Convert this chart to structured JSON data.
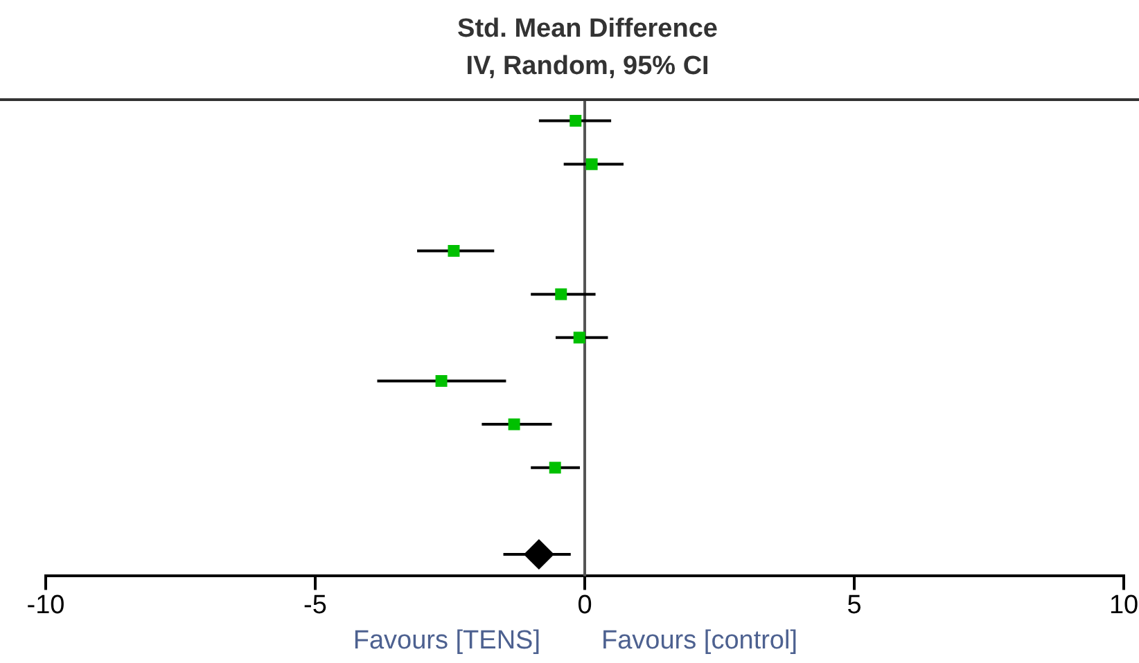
{
  "chart_data": {
    "type": "scatter",
    "orientation": "horizontal",
    "title": "Std. Mean Difference",
    "subtitle": "IV, Random, 95% CI",
    "categories": [
      null,
      null,
      null,
      null,
      null,
      null,
      null,
      null,
      null,
      null,
      null
    ],
    "series": [
      {
        "color": "#00c000",
        "marker": "square",
        "values": [
          -0.17,
          0.13,
          null,
          -2.43,
          -0.44,
          -0.1,
          -2.66,
          -1.31,
          -0.55,
          null,
          null
        ],
        "errors": [
          [
            -0.85,
            0.49
          ],
          [
            -0.39,
            0.72
          ],
          null,
          [
            -3.11,
            -1.68
          ],
          [
            -1.0,
            0.2
          ],
          [
            -0.54,
            0.43
          ],
          [
            -3.85,
            -1.46
          ],
          [
            -1.91,
            -0.61
          ],
          [
            -1.0,
            -0.09
          ],
          null,
          null
        ]
      },
      {
        "color": "#000000",
        "marker": "diamond",
        "values": [
          null,
          null,
          null,
          null,
          null,
          null,
          null,
          null,
          null,
          null,
          -0.85
        ],
        "errors": [
          null,
          null,
          null,
          null,
          null,
          null,
          null,
          null,
          null,
          null,
          [
            -1.51,
            -0.26
          ]
        ]
      }
    ],
    "xlim": [
      -10,
      10
    ],
    "xticks": [
      -10,
      -5,
      0,
      5,
      10
    ],
    "ref_lines": [
      {
        "axis": "x",
        "value": 0
      }
    ],
    "annotations": [
      "Favours [TENS]",
      "Favours [control]"
    ],
    "grid": false,
    "legend": false
  }
}
